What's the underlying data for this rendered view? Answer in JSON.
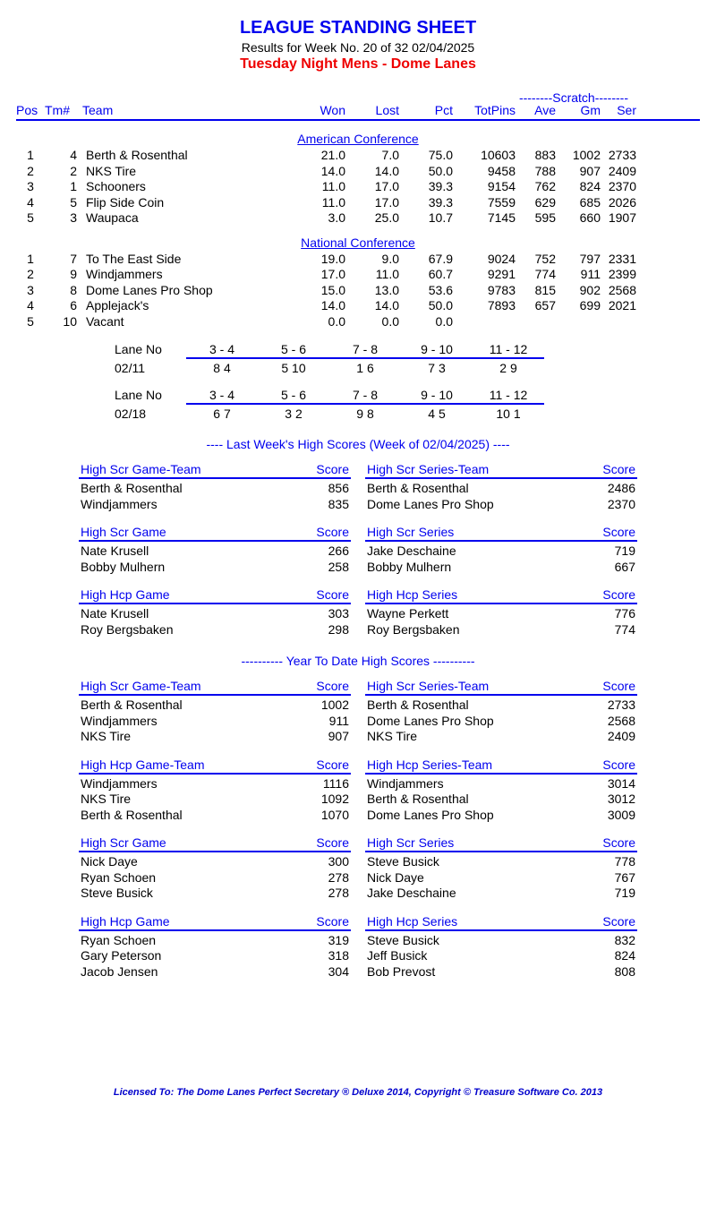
{
  "header": {
    "title": "LEAGUE STANDING SHEET",
    "subtitle": "Results for Week No. 20 of 32    02/04/2025",
    "league": "Tuesday Night Mens - Dome Lanes"
  },
  "columns": {
    "pos": "Pos",
    "tm": "Tm#",
    "team": "Team",
    "won": "Won",
    "lost": "Lost",
    "pct": "Pct",
    "totpins": "TotPins",
    "ave": "Ave",
    "gm": "Gm",
    "ser": "Ser",
    "scratch_header": "--------Scratch--------"
  },
  "conferences": [
    {
      "name": "American Conference",
      "rows": [
        {
          "pos": "1",
          "tm": "4",
          "team": "Berth & Rosenthal",
          "won": "21.0",
          "lost": "7.0",
          "pct": "75.0",
          "tot": "10603",
          "ave": "883",
          "gm": "1002",
          "ser": "2733"
        },
        {
          "pos": "2",
          "tm": "2",
          "team": "NKS Tire",
          "won": "14.0",
          "lost": "14.0",
          "pct": "50.0",
          "tot": "9458",
          "ave": "788",
          "gm": "907",
          "ser": "2409"
        },
        {
          "pos": "3",
          "tm": "1",
          "team": "Schooners",
          "won": "11.0",
          "lost": "17.0",
          "pct": "39.3",
          "tot": "9154",
          "ave": "762",
          "gm": "824",
          "ser": "2370"
        },
        {
          "pos": "4",
          "tm": "5",
          "team": "Flip Side Coin",
          "won": "11.0",
          "lost": "17.0",
          "pct": "39.3",
          "tot": "7559",
          "ave": "629",
          "gm": "685",
          "ser": "2026"
        },
        {
          "pos": "5",
          "tm": "3",
          "team": "Waupaca",
          "won": "3.0",
          "lost": "25.0",
          "pct": "10.7",
          "tot": "7145",
          "ave": "595",
          "gm": "660",
          "ser": "1907"
        }
      ]
    },
    {
      "name": "National Conference",
      "rows": [
        {
          "pos": "1",
          "tm": "7",
          "team": "To The East Side",
          "won": "19.0",
          "lost": "9.0",
          "pct": "67.9",
          "tot": "9024",
          "ave": "752",
          "gm": "797",
          "ser": "2331"
        },
        {
          "pos": "2",
          "tm": "9",
          "team": "Windjammers",
          "won": "17.0",
          "lost": "11.0",
          "pct": "60.7",
          "tot": "9291",
          "ave": "774",
          "gm": "911",
          "ser": "2399"
        },
        {
          "pos": "3",
          "tm": "8",
          "team": "Dome Lanes Pro Shop",
          "won": "15.0",
          "lost": "13.0",
          "pct": "53.6",
          "tot": "9783",
          "ave": "815",
          "gm": "902",
          "ser": "2568"
        },
        {
          "pos": "4",
          "tm": "6",
          "team": "Applejack's",
          "won": "14.0",
          "lost": "14.0",
          "pct": "50.0",
          "tot": "7893",
          "ave": "657",
          "gm": "699",
          "ser": "2021"
        },
        {
          "pos": "5",
          "tm": "10",
          "team": "Vacant",
          "won": "0.0",
          "lost": "0.0",
          "pct": "0.0",
          "tot": "",
          "ave": "",
          "gm": "",
          "ser": ""
        }
      ]
    }
  ],
  "lane_schedules": [
    {
      "lane_label": "Lane No",
      "lanes": [
        "3 -  4",
        "5 -  6",
        "7 -  8",
        "9 - 10",
        "11 - 12"
      ],
      "date": "02/11",
      "assign": [
        "8    4",
        "5   10",
        "1    6",
        "7    3",
        "2    9"
      ]
    },
    {
      "lane_label": "Lane No",
      "lanes": [
        "3 -  4",
        "5 -  6",
        "7 -  8",
        "9 - 10",
        "11 - 12"
      ],
      "date": "02/18",
      "assign": [
        "6    7",
        "3    2",
        "9    8",
        "4    5",
        "10    1"
      ]
    }
  ],
  "last_week_title": "----  Last Week's High Scores    (Week of 02/04/2025)  ----",
  "last_week": [
    {
      "left": {
        "head": "High Scr Game-Team",
        "rows": [
          {
            "n": "Berth & Rosenthal",
            "s": "856"
          },
          {
            "n": "Windjammers",
            "s": "835"
          }
        ]
      },
      "right": {
        "head": "High Scr Series-Team",
        "rows": [
          {
            "n": "Berth & Rosenthal",
            "s": "2486"
          },
          {
            "n": "Dome Lanes Pro Shop",
            "s": "2370"
          }
        ]
      }
    },
    {
      "left": {
        "head": "High Scr Game",
        "rows": [
          {
            "n": "Nate Krusell",
            "s": "266"
          },
          {
            "n": "Bobby Mulhern",
            "s": "258"
          }
        ]
      },
      "right": {
        "head": "High Scr Series",
        "rows": [
          {
            "n": "Jake Deschaine",
            "s": "719"
          },
          {
            "n": "Bobby Mulhern",
            "s": "667"
          }
        ]
      }
    },
    {
      "left": {
        "head": "High Hcp Game",
        "rows": [
          {
            "n": "Nate Krusell",
            "s": "303"
          },
          {
            "n": "Roy Bergsbaken",
            "s": "298"
          }
        ]
      },
      "right": {
        "head": "High Hcp Series",
        "rows": [
          {
            "n": "Wayne Perkett",
            "s": "776"
          },
          {
            "n": "Roy Bergsbaken",
            "s": "774"
          }
        ]
      }
    }
  ],
  "ytd_title": "---------- Year To Date High Scores ----------",
  "ytd": [
    {
      "left": {
        "head": "High Scr Game-Team",
        "rows": [
          {
            "n": "Berth & Rosenthal",
            "s": "1002"
          },
          {
            "n": "Windjammers",
            "s": "911"
          },
          {
            "n": "NKS Tire",
            "s": "907"
          }
        ]
      },
      "right": {
        "head": "High Scr Series-Team",
        "rows": [
          {
            "n": "Berth & Rosenthal",
            "s": "2733"
          },
          {
            "n": "Dome Lanes Pro Shop",
            "s": "2568"
          },
          {
            "n": "NKS Tire",
            "s": "2409"
          }
        ]
      }
    },
    {
      "left": {
        "head": "High Hcp Game-Team",
        "rows": [
          {
            "n": "Windjammers",
            "s": "1116"
          },
          {
            "n": "NKS Tire",
            "s": "1092"
          },
          {
            "n": "Berth & Rosenthal",
            "s": "1070"
          }
        ]
      },
      "right": {
        "head": "High Hcp Series-Team",
        "rows": [
          {
            "n": "Windjammers",
            "s": "3014"
          },
          {
            "n": "Berth & Rosenthal",
            "s": "3012"
          },
          {
            "n": "Dome Lanes Pro Shop",
            "s": "3009"
          }
        ]
      }
    },
    {
      "left": {
        "head": "High Scr Game",
        "rows": [
          {
            "n": "Nick Daye",
            "s": "300"
          },
          {
            "n": "Ryan Schoen",
            "s": "278"
          },
          {
            "n": "Steve Busick",
            "s": "278"
          }
        ]
      },
      "right": {
        "head": "High Scr Series",
        "rows": [
          {
            "n": "Steve Busick",
            "s": "778"
          },
          {
            "n": "Nick Daye",
            "s": "767"
          },
          {
            "n": "Jake Deschaine",
            "s": "719"
          }
        ]
      }
    },
    {
      "left": {
        "head": "High Hcp Game",
        "rows": [
          {
            "n": "Ryan Schoen",
            "s": "319"
          },
          {
            "n": "Gary Peterson",
            "s": "318"
          },
          {
            "n": "Jacob Jensen",
            "s": "304"
          }
        ]
      },
      "right": {
        "head": "High Hcp Series",
        "rows": [
          {
            "n": "Steve Busick",
            "s": "832"
          },
          {
            "n": "Jeff Busick",
            "s": "824"
          },
          {
            "n": "Bob Prevost",
            "s": "808"
          }
        ]
      }
    }
  ],
  "score_label": "Score",
  "footer": "Licensed To: The Dome Lanes    Perfect Secretary ® Deluxe  2014, Copyright © Treasure Software Co. 2013"
}
